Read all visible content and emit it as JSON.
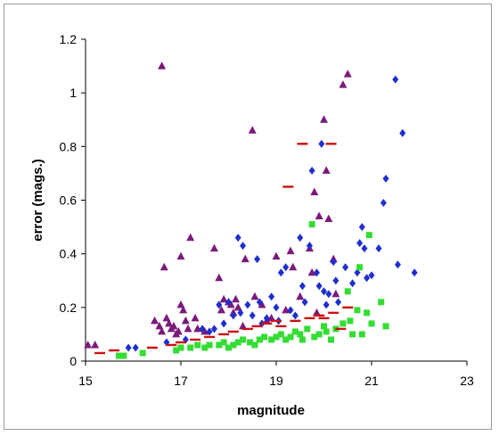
{
  "chart_data": {
    "type": "scatter",
    "title": "",
    "xlabel": "magnitude",
    "ylabel": "error (mags.)",
    "xlim": [
      15,
      23
    ],
    "ylim": [
      0,
      1.2
    ],
    "x_ticks": [
      15,
      17,
      19,
      21,
      23
    ],
    "y_ticks": [
      0,
      0.2,
      0.4,
      0.6,
      0.8,
      1,
      1.2
    ],
    "x_tick_labels": [
      "15",
      "17",
      "19",
      "21",
      "23"
    ],
    "y_tick_labels": [
      "0",
      "0.2",
      "0.4",
      "0.6",
      "0.8",
      "1",
      "1.2"
    ],
    "grid": false,
    "legend": "none",
    "series": [
      {
        "marker": "triangle",
        "color": "#7b1a7b",
        "points": [
          [
            15.05,
            0.06
          ],
          [
            15.2,
            0.06
          ],
          [
            16.45,
            0.15
          ],
          [
            16.55,
            0.13
          ],
          [
            16.6,
            0.11
          ],
          [
            16.6,
            1.1
          ],
          [
            16.65,
            0.35
          ],
          [
            16.7,
            0.16
          ],
          [
            16.75,
            0.14
          ],
          [
            16.8,
            0.12
          ],
          [
            16.85,
            0.13
          ],
          [
            16.9,
            0.1
          ],
          [
            16.95,
            0.11
          ],
          [
            17.0,
            0.39
          ],
          [
            17.0,
            0.21
          ],
          [
            17.05,
            0.19
          ],
          [
            17.1,
            0.15
          ],
          [
            17.15,
            0.12
          ],
          [
            17.2,
            0.46
          ],
          [
            17.3,
            0.16
          ],
          [
            17.35,
            0.12
          ],
          [
            17.5,
            0.11
          ],
          [
            17.7,
            0.42
          ],
          [
            17.8,
            0.31
          ],
          [
            17.85,
            0.19
          ],
          [
            17.9,
            0.23
          ],
          [
            18.0,
            0.22
          ],
          [
            18.05,
            0.21
          ],
          [
            18.1,
            0.18
          ],
          [
            18.15,
            0.23
          ],
          [
            18.2,
            0.2
          ],
          [
            18.3,
            0.13
          ],
          [
            18.35,
            0.38
          ],
          [
            18.5,
            0.86
          ],
          [
            18.55,
            0.24
          ],
          [
            18.7,
            0.21
          ],
          [
            18.8,
            0.15
          ],
          [
            18.9,
            0.16
          ],
          [
            19.0,
            0.39
          ],
          [
            19.2,
            0.19
          ],
          [
            19.3,
            0.41
          ],
          [
            19.35,
            0.35
          ],
          [
            19.5,
            0.24
          ],
          [
            19.7,
            0.42
          ],
          [
            19.75,
            0.33
          ],
          [
            19.8,
            0.63
          ],
          [
            19.85,
            0.18
          ],
          [
            19.9,
            0.54
          ],
          [
            20.0,
            0.9
          ],
          [
            20.05,
            0.71
          ],
          [
            20.1,
            0.53
          ],
          [
            20.2,
            0.38
          ],
          [
            20.25,
            0.25
          ],
          [
            20.4,
            1.03
          ],
          [
            20.5,
            1.07
          ]
        ]
      },
      {
        "marker": "diamond",
        "color": "#1f2fcf",
        "points": [
          [
            15.9,
            0.05
          ],
          [
            16.05,
            0.05
          ],
          [
            16.7,
            0.07
          ],
          [
            17.1,
            0.08
          ],
          [
            17.45,
            0.12
          ],
          [
            17.6,
            0.11
          ],
          [
            17.7,
            0.12
          ],
          [
            17.8,
            0.21
          ],
          [
            17.9,
            0.14
          ],
          [
            18.0,
            0.22
          ],
          [
            18.1,
            0.17
          ],
          [
            18.2,
            0.46
          ],
          [
            18.25,
            0.18
          ],
          [
            18.3,
            0.43
          ],
          [
            18.4,
            0.21
          ],
          [
            18.5,
            0.17
          ],
          [
            18.6,
            0.38
          ],
          [
            18.65,
            0.22
          ],
          [
            18.7,
            0.14
          ],
          [
            18.8,
            0.16
          ],
          [
            18.9,
            0.24
          ],
          [
            19.0,
            0.2
          ],
          [
            19.05,
            0.15
          ],
          [
            19.1,
            0.33
          ],
          [
            19.2,
            0.35
          ],
          [
            19.3,
            0.19
          ],
          [
            19.4,
            0.17
          ],
          [
            19.5,
            0.46
          ],
          [
            19.55,
            0.28
          ],
          [
            19.6,
            0.22
          ],
          [
            19.7,
            0.43
          ],
          [
            19.75,
            0.71
          ],
          [
            19.85,
            0.33
          ],
          [
            19.9,
            0.28
          ],
          [
            19.95,
            0.81
          ],
          [
            20.0,
            0.26
          ],
          [
            20.05,
            0.21
          ],
          [
            20.1,
            0.25
          ],
          [
            20.2,
            0.37
          ],
          [
            20.25,
            0.3
          ],
          [
            20.3,
            0.22
          ],
          [
            20.45,
            0.35
          ],
          [
            20.6,
            0.29
          ],
          [
            20.7,
            0.33
          ],
          [
            20.75,
            0.44
          ],
          [
            20.8,
            0.5
          ],
          [
            20.85,
            0.42
          ],
          [
            20.9,
            0.31
          ],
          [
            21.0,
            0.32
          ],
          [
            21.15,
            0.42
          ],
          [
            21.25,
            0.59
          ],
          [
            21.3,
            0.68
          ],
          [
            21.5,
            1.05
          ],
          [
            21.55,
            0.36
          ],
          [
            21.65,
            0.85
          ],
          [
            21.9,
            0.33
          ]
        ]
      },
      {
        "marker": "square",
        "color": "#33dd33",
        "points": [
          [
            15.7,
            0.02
          ],
          [
            15.8,
            0.02
          ],
          [
            16.2,
            0.03
          ],
          [
            16.9,
            0.04
          ],
          [
            17.0,
            0.05
          ],
          [
            17.2,
            0.05
          ],
          [
            17.35,
            0.06
          ],
          [
            17.5,
            0.05
          ],
          [
            17.6,
            0.06
          ],
          [
            17.8,
            0.06
          ],
          [
            17.9,
            0.07
          ],
          [
            18.0,
            0.05
          ],
          [
            18.1,
            0.06
          ],
          [
            18.2,
            0.07
          ],
          [
            18.3,
            0.08
          ],
          [
            18.45,
            0.07
          ],
          [
            18.55,
            0.06
          ],
          [
            18.65,
            0.08
          ],
          [
            18.75,
            0.09
          ],
          [
            18.9,
            0.08
          ],
          [
            19.0,
            0.09
          ],
          [
            19.1,
            0.1
          ],
          [
            19.2,
            0.08
          ],
          [
            19.3,
            0.09
          ],
          [
            19.4,
            0.11
          ],
          [
            19.5,
            0.1
          ],
          [
            19.55,
            0.08
          ],
          [
            19.65,
            0.12
          ],
          [
            19.75,
            0.51
          ],
          [
            19.8,
            0.09
          ],
          [
            19.9,
            0.1
          ],
          [
            20.0,
            0.13
          ],
          [
            20.05,
            0.11
          ],
          [
            20.15,
            0.08
          ],
          [
            20.25,
            0.12
          ],
          [
            20.4,
            0.14
          ],
          [
            20.5,
            0.26
          ],
          [
            20.55,
            0.15
          ],
          [
            20.6,
            0.1
          ],
          [
            20.7,
            0.19
          ],
          [
            20.75,
            0.35
          ],
          [
            20.8,
            0.1
          ],
          [
            20.9,
            0.18
          ],
          [
            20.95,
            0.47
          ],
          [
            21.0,
            0.14
          ],
          [
            21.2,
            0.22
          ],
          [
            21.3,
            0.13
          ]
        ]
      },
      {
        "marker": "dash",
        "color": "#cc1111",
        "points": [
          [
            15.3,
            0.03
          ],
          [
            15.6,
            0.04
          ],
          [
            16.4,
            0.05
          ],
          [
            16.8,
            0.06
          ],
          [
            17.0,
            0.07
          ],
          [
            17.3,
            0.08
          ],
          [
            17.6,
            0.09
          ],
          [
            17.9,
            0.1
          ],
          [
            18.1,
            0.11
          ],
          [
            18.4,
            0.12
          ],
          [
            18.6,
            0.13
          ],
          [
            18.8,
            0.14
          ],
          [
            19.0,
            0.15
          ],
          [
            19.1,
            0.13
          ],
          [
            19.25,
            0.65
          ],
          [
            19.4,
            0.15
          ],
          [
            19.55,
            0.81
          ],
          [
            19.7,
            0.16
          ],
          [
            19.9,
            0.17
          ],
          [
            20.0,
            0.16
          ],
          [
            20.15,
            0.81
          ],
          [
            20.2,
            0.18
          ],
          [
            20.35,
            0.12
          ],
          [
            20.5,
            0.2
          ]
        ]
      }
    ]
  }
}
